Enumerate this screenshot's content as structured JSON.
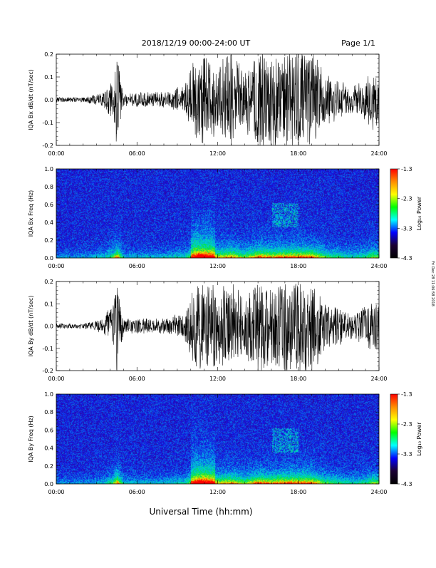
{
  "header": {
    "title": "2018/12/19   00:00-24:00 UT",
    "page_label": "Page 1/1"
  },
  "footer": {
    "xlabel": "Universal Time (hh:mm)",
    "side_note": "Fri Dec 28 11:06:58 2018"
  },
  "colorbar": {
    "label": "Log₁₀ Power",
    "ticks": [
      "-1.3",
      "-2.3",
      "-3.3",
      "-4.3"
    ],
    "colors": [
      "#ff0000",
      "#ff8c00",
      "#ffff00",
      "#00ff00",
      "#00ffff",
      "#0000ff",
      "#1a0033",
      "#000000"
    ]
  },
  "chart_data": [
    {
      "type": "line",
      "ylabel": "IQA Bx dB/dt (nT/sec)",
      "ylim": [
        -0.2,
        0.2
      ],
      "yticks": [
        "0.2",
        "0.1",
        "0.0",
        "-0.1",
        "-0.2"
      ],
      "xticks": [
        "00:00",
        "06:00",
        "12:00",
        "18:00",
        "24:00"
      ],
      "xlim_hours": [
        0,
        24
      ],
      "envelope": {
        "hours": [
          0,
          2,
          3.5,
          4.2,
          4.5,
          5,
          6,
          8,
          9,
          9.5,
          10,
          10.5,
          11,
          12,
          13,
          14,
          15,
          16,
          17,
          18,
          19,
          20,
          21,
          22,
          23,
          23.5,
          24
        ],
        "amplitude": [
          0.01,
          0.01,
          0.03,
          0.1,
          0.2,
          0.03,
          0.03,
          0.03,
          0.05,
          0.05,
          0.12,
          0.2,
          0.2,
          0.15,
          0.18,
          0.12,
          0.2,
          0.18,
          0.2,
          0.2,
          0.2,
          0.1,
          0.08,
          0.05,
          0.08,
          0.12,
          0.12
        ]
      }
    },
    {
      "type": "heatmap",
      "ylabel": "IQA Bx Freq (Hz)",
      "ylim": [
        0,
        1.0
      ],
      "yticks": [
        "1.0",
        "0.8",
        "0.6",
        "0.4",
        "0.2",
        "0.0"
      ],
      "xticks": [
        "00:00",
        "06:00",
        "12:00",
        "18:00",
        "24:00"
      ],
      "xlim_hours": [
        0,
        24
      ],
      "zlim": [
        -4.3,
        -1.3
      ]
    },
    {
      "type": "line",
      "ylabel": "IQA By dB/dt (nT/sec)",
      "ylim": [
        -0.2,
        0.2
      ],
      "yticks": [
        "0.2",
        "0.1",
        "0.0",
        "-0.1",
        "-0.2"
      ],
      "xticks": [
        "00:00",
        "06:00",
        "12:00",
        "18:00",
        "24:00"
      ],
      "xlim_hours": [
        0,
        24
      ],
      "envelope": {
        "hours": [
          0,
          2,
          3.5,
          4.2,
          4.5,
          5,
          6,
          8,
          9,
          9.5,
          10,
          10.5,
          11,
          12,
          13,
          14,
          15,
          16,
          17,
          18,
          19,
          20,
          21,
          22,
          23,
          23.5,
          24
        ],
        "amplitude": [
          0.01,
          0.01,
          0.03,
          0.1,
          0.2,
          0.03,
          0.03,
          0.03,
          0.05,
          0.05,
          0.12,
          0.2,
          0.2,
          0.15,
          0.18,
          0.12,
          0.2,
          0.18,
          0.2,
          0.2,
          0.2,
          0.1,
          0.08,
          0.05,
          0.08,
          0.12,
          0.12
        ]
      }
    },
    {
      "type": "heatmap",
      "ylabel": "IQA By Freq (Hz)",
      "ylim": [
        0,
        1.0
      ],
      "yticks": [
        "1.0",
        "0.8",
        "0.6",
        "0.4",
        "0.2",
        "0.0"
      ],
      "xticks": [
        "00:00",
        "06:00",
        "12:00",
        "18:00",
        "24:00"
      ],
      "xlim_hours": [
        0,
        24
      ],
      "zlim": [
        -4.3,
        -1.3
      ]
    }
  ]
}
